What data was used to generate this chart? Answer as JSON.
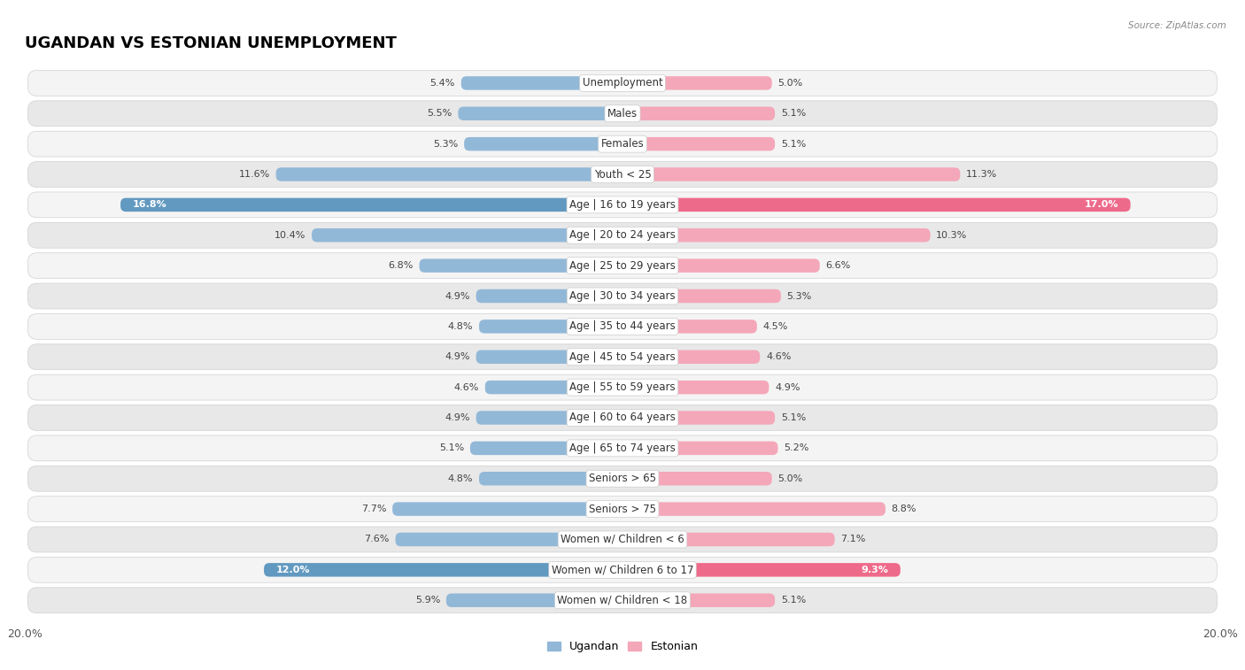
{
  "title": "UGANDAN VS ESTONIAN UNEMPLOYMENT",
  "source": "Source: ZipAtlas.com",
  "categories": [
    "Unemployment",
    "Males",
    "Females",
    "Youth < 25",
    "Age | 16 to 19 years",
    "Age | 20 to 24 years",
    "Age | 25 to 29 years",
    "Age | 30 to 34 years",
    "Age | 35 to 44 years",
    "Age | 45 to 54 years",
    "Age | 55 to 59 years",
    "Age | 60 to 64 years",
    "Age | 65 to 74 years",
    "Seniors > 65",
    "Seniors > 75",
    "Women w/ Children < 6",
    "Women w/ Children 6 to 17",
    "Women w/ Children < 18"
  ],
  "ugandan": [
    5.4,
    5.5,
    5.3,
    11.6,
    16.8,
    10.4,
    6.8,
    4.9,
    4.8,
    4.9,
    4.6,
    4.9,
    5.1,
    4.8,
    7.7,
    7.6,
    12.0,
    5.9
  ],
  "estonian": [
    5.0,
    5.1,
    5.1,
    11.3,
    17.0,
    10.3,
    6.6,
    5.3,
    4.5,
    4.6,
    4.9,
    5.1,
    5.2,
    5.0,
    8.8,
    7.1,
    9.3,
    5.1
  ],
  "ugandan_color_default": "#92b8d8",
  "ugandan_color_highlight": "#6199c0",
  "estonian_color_default": "#f4a7b9",
  "estonian_color_highlight": "#ee6a8a",
  "highlight_rows": [
    4,
    16
  ],
  "axis_max": 20.0,
  "legend_ugandan": "Ugandan",
  "legend_estonian": "Estonian",
  "bg_row_light": "#f4f4f4",
  "bg_row_dark": "#e8e8e8",
  "row_border_color": "#d0d0d0",
  "title_fontsize": 13,
  "label_fontsize": 8.5,
  "value_fontsize": 8.0
}
